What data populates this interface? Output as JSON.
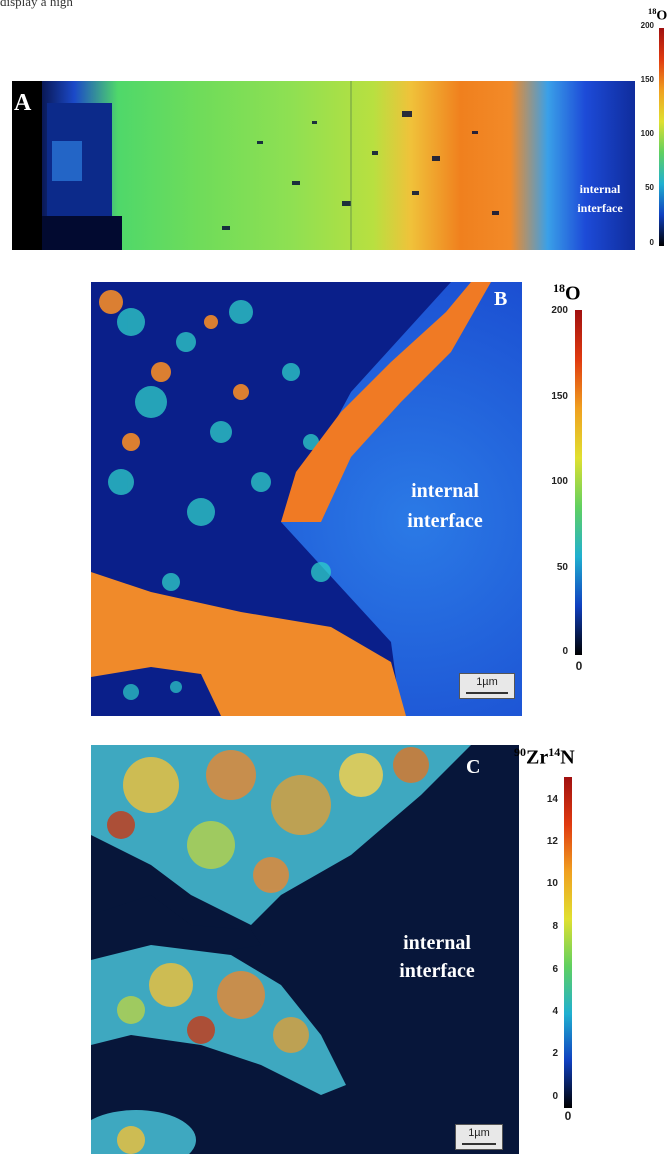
{
  "caption_fragment": "display a high",
  "panels": [
    {
      "letter": "A",
      "overlay": [
        "internal",
        "interface"
      ],
      "colorbar": {
        "label_mass": "18",
        "label_element": "O",
        "ticks": [
          "200",
          "150",
          "100",
          "50",
          "0"
        ],
        "min_extra": "0"
      }
    },
    {
      "letter": "B",
      "overlay": [
        "internal",
        "interface"
      ],
      "scale_bar": "1µm",
      "colorbar": {
        "label_mass": "18",
        "label_element": "O",
        "ticks": [
          "200",
          "150",
          "100",
          "50",
          "0"
        ],
        "min_extra": "0"
      }
    },
    {
      "letter": "C",
      "overlay": [
        "internal",
        "interface"
      ],
      "scale_bar": "1µm",
      "colorbar": {
        "label_mass1": "90",
        "label_el1": "Zr",
        "label_mass2": "14",
        "label_el2": "N",
        "ticks": [
          "14",
          "12",
          "10",
          "8",
          "6",
          "4",
          "2",
          "0"
        ],
        "min_extra": "0"
      }
    }
  ],
  "colors": {
    "jet_blue": "#1a3bd6",
    "jet_cyan": "#2fd0e0",
    "jet_green": "#7ee04a",
    "jet_yellow": "#f2e23a",
    "jet_orange": "#f08a1e",
    "jet_red": "#c41e10",
    "dark_navy": "#07163a"
  }
}
